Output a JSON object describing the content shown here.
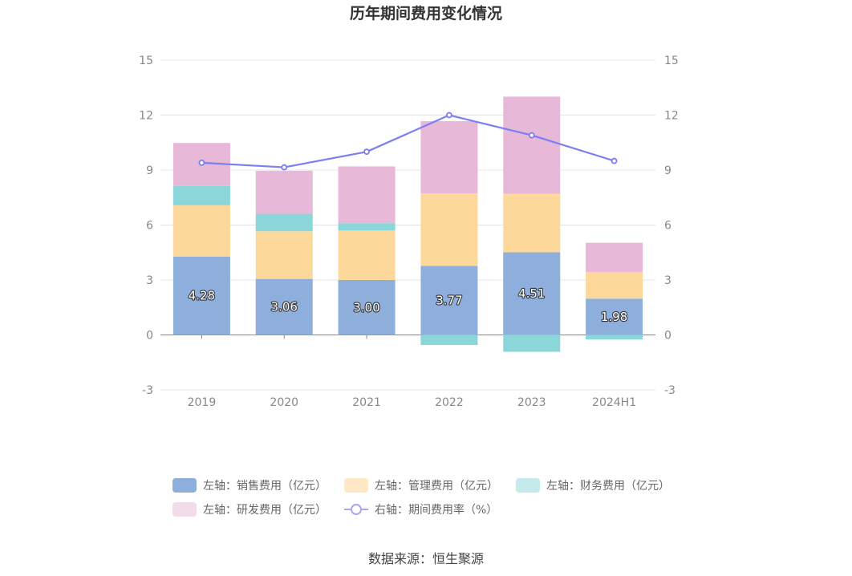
{
  "chart_data": {
    "type": "bar",
    "title": "历年期间费用变化情况",
    "categories": [
      "2019",
      "2020",
      "2021",
      "2022",
      "2023",
      "2024H1"
    ],
    "left_axis": {
      "min": -3,
      "max": 15,
      "ticks": [
        -3,
        0,
        3,
        6,
        9,
        12,
        15
      ]
    },
    "right_axis": {
      "min": -3,
      "max": 15,
      "ticks": [
        -3,
        0,
        3,
        6,
        9,
        12,
        15
      ]
    },
    "stacked": true,
    "series": [
      {
        "name": "左轴：销售费用（亿元）",
        "type": "bar",
        "axis": "left",
        "color": "#8eaedc",
        "values": [
          4.28,
          3.06,
          3.0,
          3.77,
          4.51,
          1.98
        ],
        "labels": [
          "4.28",
          "3.06",
          "3.00",
          "3.77",
          "4.51",
          "1.98"
        ]
      },
      {
        "name": "左轴：管理费用（亿元）",
        "type": "bar",
        "axis": "left",
        "color": "#fdd89b",
        "values": [
          2.8,
          2.6,
          2.7,
          3.95,
          3.2,
          1.45
        ]
      },
      {
        "name": "左轴：财务费用（亿元）",
        "type": "bar",
        "axis": "left",
        "color": "#8ad6d9",
        "values": [
          1.05,
          0.95,
          0.4,
          -0.55,
          -0.92,
          -0.25
        ]
      },
      {
        "name": "左轴：研发费用（亿元）",
        "type": "bar",
        "axis": "left",
        "color": "#e8b8d8",
        "values": [
          2.35,
          2.35,
          3.1,
          3.95,
          5.3,
          1.6
        ]
      },
      {
        "name": "右轴：期间费用率（%）",
        "type": "line",
        "axis": "right",
        "color": "#7b7ff0",
        "values": [
          9.4,
          9.15,
          10.0,
          12.0,
          10.9,
          9.5
        ]
      }
    ],
    "legend_position": "bottom",
    "grid": true
  },
  "legend_swatches": [
    "#8eaedc",
    "#fee8c6",
    "#c4eaec",
    "#f2dbeb"
  ],
  "source": "数据来源：恒生聚源"
}
